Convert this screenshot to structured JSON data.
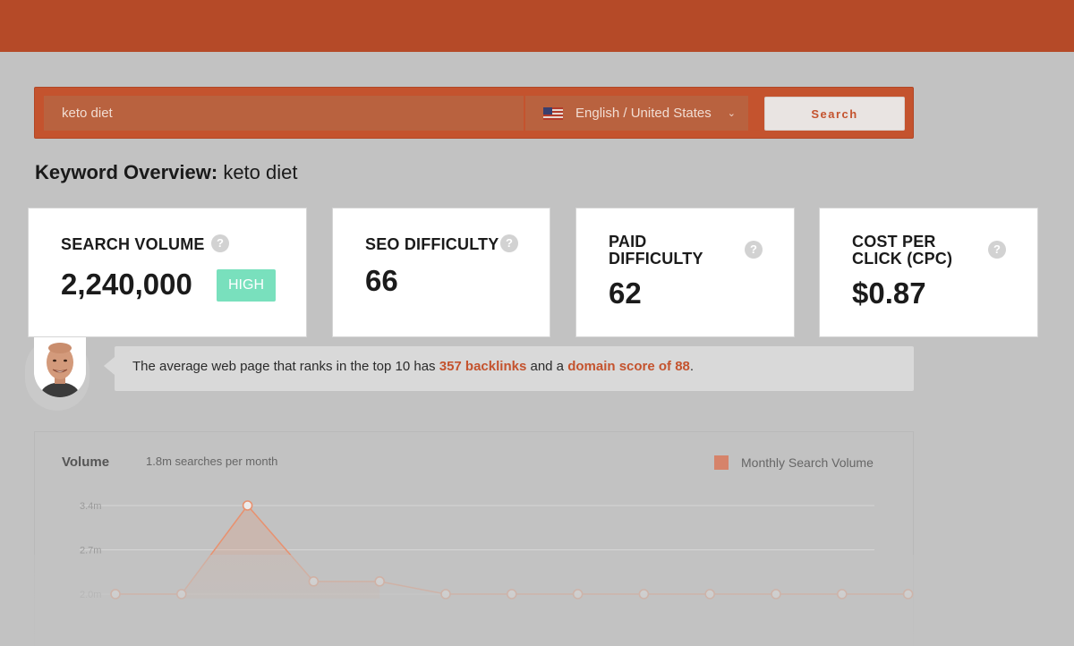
{
  "search": {
    "keyword": "keto diet",
    "language": "English / United States",
    "button_label": "Search"
  },
  "overview": {
    "label": "Keyword Overview:",
    "keyword": "keto diet"
  },
  "cards": {
    "search_volume": {
      "title_line1": "SEARCH VOLUME",
      "value": "2,240,000",
      "badge": "HIGH"
    },
    "seo_difficulty": {
      "title_line1": "SEO DIFFICULTY",
      "value": "66"
    },
    "paid_difficulty": {
      "title_line1": "PAID",
      "title_line2": "DIFFICULTY",
      "value": "62"
    },
    "cpc": {
      "title_line1": "COST PER",
      "title_line2": "CLICK (CPC)",
      "value": "$0.87"
    },
    "help_glyph": "?"
  },
  "tip": {
    "prefix": "The average web page that ranks in the top 10 has ",
    "backlinks": "357 backlinks",
    "middle": " and a ",
    "domain_score": "domain score of 88",
    "suffix": "."
  },
  "volume_chart": {
    "title": "Volume",
    "subtitle": "1.8m searches per month",
    "legend": "Monthly Search Volume"
  },
  "chart_data": {
    "type": "line",
    "series": [
      {
        "name": "Monthly Search Volume",
        "values": [
          2.0,
          2.0,
          3.4,
          2.2,
          2.2,
          2.0,
          2.0,
          2.0,
          2.0,
          2.0,
          2.0,
          2.0,
          2.0
        ]
      }
    ],
    "y_ticks": [
      "3.4m",
      "2.7m",
      "2.0m"
    ],
    "ylim": [
      2.0,
      3.4
    ],
    "grid": true,
    "legend_position": "top-right"
  },
  "colors": {
    "brand": "#c4532e",
    "badge_high": "#79e0bd",
    "line": "#e8916f"
  }
}
